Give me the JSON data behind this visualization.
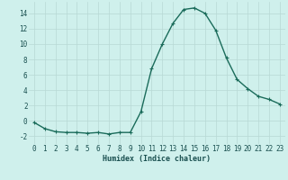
{
  "x": [
    0,
    1,
    2,
    3,
    4,
    5,
    6,
    7,
    8,
    9,
    10,
    11,
    12,
    13,
    14,
    15,
    16,
    17,
    18,
    19,
    20,
    21,
    22,
    23
  ],
  "y": [
    -0.2,
    -1.0,
    -1.4,
    -1.5,
    -1.5,
    -1.6,
    -1.5,
    -1.7,
    -1.5,
    -1.5,
    1.2,
    6.8,
    10.0,
    12.7,
    14.5,
    14.7,
    14.0,
    11.8,
    8.2,
    5.4,
    4.2,
    3.2,
    2.8,
    2.2
  ],
  "line_color": "#1a6b5a",
  "marker": "+",
  "markersize": 3,
  "linewidth": 1.0,
  "markeredgewidth": 0.8,
  "xlabel": "Humidex (Indice chaleur)",
  "xlim": [
    -0.5,
    23.5
  ],
  "ylim": [
    -3.0,
    15.5
  ],
  "yticks": [
    -2,
    0,
    2,
    4,
    6,
    8,
    10,
    12,
    14
  ],
  "xticks": [
    0,
    1,
    2,
    3,
    4,
    5,
    6,
    7,
    8,
    9,
    10,
    11,
    12,
    13,
    14,
    15,
    16,
    17,
    18,
    19,
    20,
    21,
    22,
    23
  ],
  "bg_color": "#cff0ec",
  "grid_color": "#b8d8d4",
  "font_color": "#1a5050",
  "xlabel_fontsize": 6.0,
  "tick_fontsize": 5.5,
  "grid_linewidth": 0.5
}
